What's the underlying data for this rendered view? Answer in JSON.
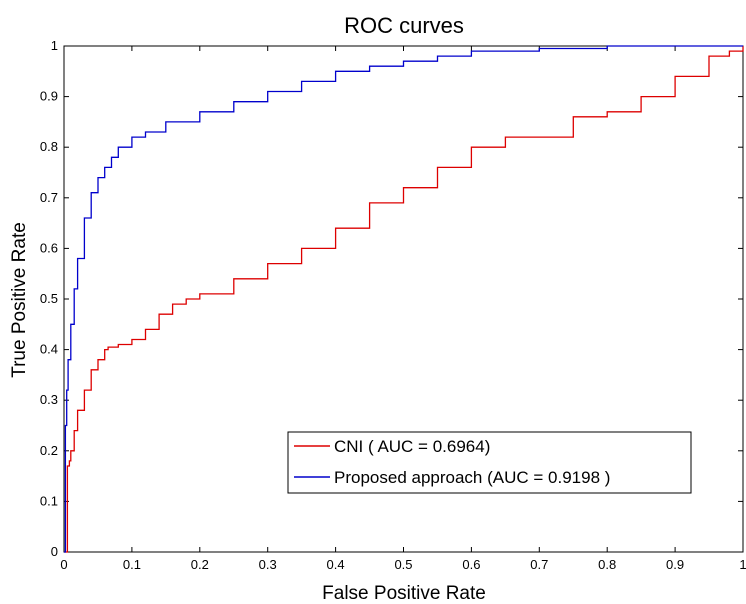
{
  "chart_data": {
    "type": "line",
    "title": "ROC curves",
    "xlabel": "False Positive Rate",
    "ylabel": "True Positive Rate",
    "xlim": [
      0,
      1
    ],
    "ylim": [
      0,
      1
    ],
    "x_ticks": [
      "0",
      "0.1",
      "0.2",
      "0.3",
      "0.4",
      "0.5",
      "0.6",
      "0.7",
      "0.8",
      "0.9",
      "1"
    ],
    "y_ticks": [
      "0",
      "0.1",
      "0.2",
      "0.3",
      "0.4",
      "0.5",
      "0.6",
      "0.7",
      "0.8",
      "0.9",
      "1"
    ],
    "grid": false,
    "legend_position": "bottom-right",
    "series": [
      {
        "name": "CNI ( AUC = 0.6964)",
        "color": "#dd0000",
        "x": [
          0,
          0.005,
          0.008,
          0.01,
          0.015,
          0.02,
          0.03,
          0.04,
          0.05,
          0.06,
          0.065,
          0.08,
          0.1,
          0.12,
          0.14,
          0.16,
          0.18,
          0.2,
          0.25,
          0.3,
          0.35,
          0.4,
          0.45,
          0.5,
          0.55,
          0.6,
          0.65,
          0.7,
          0.75,
          0.8,
          0.85,
          0.9,
          0.95,
          0.98,
          1.0
        ],
        "y": [
          0,
          0.17,
          0.18,
          0.2,
          0.24,
          0.28,
          0.32,
          0.36,
          0.38,
          0.4,
          0.405,
          0.41,
          0.42,
          0.44,
          0.47,
          0.49,
          0.5,
          0.51,
          0.54,
          0.57,
          0.6,
          0.64,
          0.69,
          0.72,
          0.76,
          0.8,
          0.82,
          0.82,
          0.86,
          0.87,
          0.9,
          0.94,
          0.98,
          0.99,
          1.0
        ]
      },
      {
        "name": "Proposed approach (AUC = 0.9198 )",
        "color": "#0000cc",
        "x": [
          0,
          0.002,
          0.004,
          0.006,
          0.01,
          0.015,
          0.02,
          0.03,
          0.04,
          0.05,
          0.06,
          0.07,
          0.08,
          0.1,
          0.12,
          0.15,
          0.2,
          0.25,
          0.3,
          0.35,
          0.4,
          0.45,
          0.5,
          0.55,
          0.6,
          0.7,
          0.8,
          0.9,
          1.0
        ],
        "y": [
          0,
          0.25,
          0.32,
          0.38,
          0.45,
          0.52,
          0.58,
          0.66,
          0.71,
          0.74,
          0.76,
          0.78,
          0.8,
          0.82,
          0.83,
          0.85,
          0.87,
          0.89,
          0.91,
          0.93,
          0.95,
          0.96,
          0.97,
          0.98,
          0.99,
          0.995,
          1.0,
          1.0,
          1.0
        ]
      }
    ]
  }
}
